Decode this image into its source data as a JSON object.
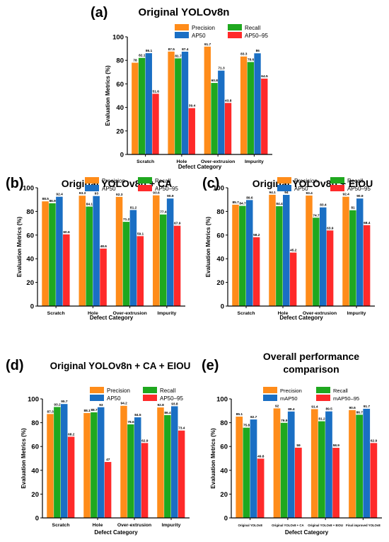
{
  "colors": {
    "precision": "#FF8C1A",
    "recall": "#1FA81F",
    "ap50": "#1A6FC4",
    "ap50_95": "#FF2A2A"
  },
  "chart_data": [
    {
      "id": "a",
      "panel_label": "(a)",
      "title": "Original YOLOv8n",
      "type": "bar",
      "xlabel": "Defect Category",
      "ylabel": "Evaluation Metrics (%)",
      "ylim": [
        0,
        100
      ],
      "yticks": [
        0,
        20,
        40,
        60,
        80,
        100
      ],
      "categories": [
        "Scratch",
        "Hole",
        "Over-extrusion",
        "Impurity"
      ],
      "legend": {
        "placement": "top-right"
      },
      "series": [
        {
          "name": "Precision",
          "color": "#FF8C1A",
          "values": [
            78,
            87.5,
            91.7,
            83.3
          ]
        },
        {
          "name": "Recall",
          "color": "#1FA81F",
          "values": [
            82.1,
            81.7,
            60.8,
            78.6
          ]
        },
        {
          "name": "AP50",
          "color": "#1A6FC4",
          "values": [
            86.1,
            87.4,
            71.3,
            86
          ]
        },
        {
          "name": "AP50–95",
          "color": "#FF2A2A",
          "values": [
            51.6,
            39.4,
            43.8,
            64.5
          ]
        }
      ]
    },
    {
      "id": "b",
      "panel_label": "(b)",
      "title": "Original YOLOv8n + CA",
      "type": "bar",
      "xlabel": "Defect Category",
      "ylabel": "Evaluation Metrics (%)",
      "ylim": [
        0,
        100
      ],
      "yticks": [
        0,
        20,
        40,
        60,
        80,
        100
      ],
      "categories": [
        "Scratch",
        "Hole",
        "Over-extrusion",
        "Impurity"
      ],
      "legend": {
        "placement": "top-right"
      },
      "series": [
        {
          "name": "Precision",
          "color": "#FF8C1A",
          "values": [
            88.5,
            93.3,
            92.3,
            93.6
          ]
        },
        {
          "name": "Recall",
          "color": "#1FA81F",
          "values": [
            86.9,
            84.1,
            71.2,
            77.4
          ]
        },
        {
          "name": "AP50",
          "color": "#1A6FC4",
          "values": [
            92.4,
            93,
            81.2,
            90.9
          ]
        },
        {
          "name": "AP50–95",
          "color": "#FF2A2A",
          "values": [
            60.6,
            48.6,
            59.1,
            67.9
          ]
        }
      ]
    },
    {
      "id": "c",
      "panel_label": "(c)",
      "title": "Original YOLOv8n + EIOU",
      "type": "bar",
      "xlabel": "Defect Category",
      "ylabel": "Evaluation Metrics (%)",
      "ylim": [
        0,
        100
      ],
      "yticks": [
        0,
        20,
        40,
        60,
        80,
        100
      ],
      "categories": [
        "Scratch",
        "Hole",
        "Over-extrusion",
        "Impurity"
      ],
      "legend": {
        "placement": "top-right"
      },
      "series": [
        {
          "name": "Precision",
          "color": "#FF8C1A",
          "values": [
            85.7,
            94.1,
            93.4,
            92.4
          ]
        },
        {
          "name": "Recall",
          "color": "#1FA81F",
          "values": [
            84.7,
            84.4,
            74.7,
            81
          ]
        },
        {
          "name": "AP50",
          "color": "#1A6FC4",
          "values": [
            89.6,
            94,
            83.4,
            90.9
          ]
        },
        {
          "name": "AP50–95",
          "color": "#FF2A2A",
          "values": [
            58.2,
            45.2,
            63.9,
            68.4
          ]
        }
      ]
    },
    {
      "id": "d",
      "panel_label": "(d)",
      "title": "Original YOLOv8n + CA + EIOU",
      "type": "bar",
      "xlabel": "Defect Category",
      "ylabel": "Evaluation Metrics (%)",
      "ylim": [
        0,
        100
      ],
      "yticks": [
        0,
        20,
        40,
        60,
        80,
        100
      ],
      "categories": [
        "Scratch",
        "Hole",
        "Over-extrusion",
        "Impurity"
      ],
      "legend": {
        "placement": "top-right"
      },
      "series": [
        {
          "name": "Precision",
          "color": "#FF8C1A",
          "values": [
            87.3,
            88.1,
            94.2,
            92.8
          ]
        },
        {
          "name": "Recall",
          "color": "#1FA81F",
          "values": [
            93.2,
            88.7,
            78.6,
            86.4
          ]
        },
        {
          "name": "AP50",
          "color": "#1A6FC4",
          "values": [
            95.7,
            93,
            84.5,
            93.8
          ]
        },
        {
          "name": "AP50–95",
          "color": "#FF2A2A",
          "values": [
            68.2,
            47,
            62.9,
            73.4
          ]
        }
      ]
    },
    {
      "id": "e",
      "panel_label": "(e)",
      "title": [
        "Overall performance",
        "comparison"
      ],
      "type": "bar",
      "xlabel": "Defect Category",
      "ylabel": "Evaluation Metrics (%)",
      "ylim": [
        0,
        100
      ],
      "yticks": [
        0,
        20,
        40,
        60,
        80,
        100
      ],
      "categories": [
        "Original YOLOv8",
        "Original YOLOv8 + CA",
        "Original YOLOv8 + EIOU",
        "Final improved YOLOv8"
      ],
      "legend": {
        "placement": "top-right"
      },
      "series": [
        {
          "name": "Precision",
          "color": "#FF8C1A",
          "values": [
            85.1,
            92,
            91.4,
            90.6
          ]
        },
        {
          "name": "Recall",
          "color": "#1FA81F",
          "values": [
            75.8,
            79.9,
            81.2,
            86.7
          ]
        },
        {
          "name": "mAP50",
          "color": "#1A6FC4",
          "values": [
            82.7,
            89.4,
            89.5,
            91.7
          ]
        },
        {
          "name": "mAP50–95",
          "color": "#FF2A2A",
          "values": [
            49.8,
            59,
            58.9,
            62.9
          ]
        }
      ]
    }
  ]
}
